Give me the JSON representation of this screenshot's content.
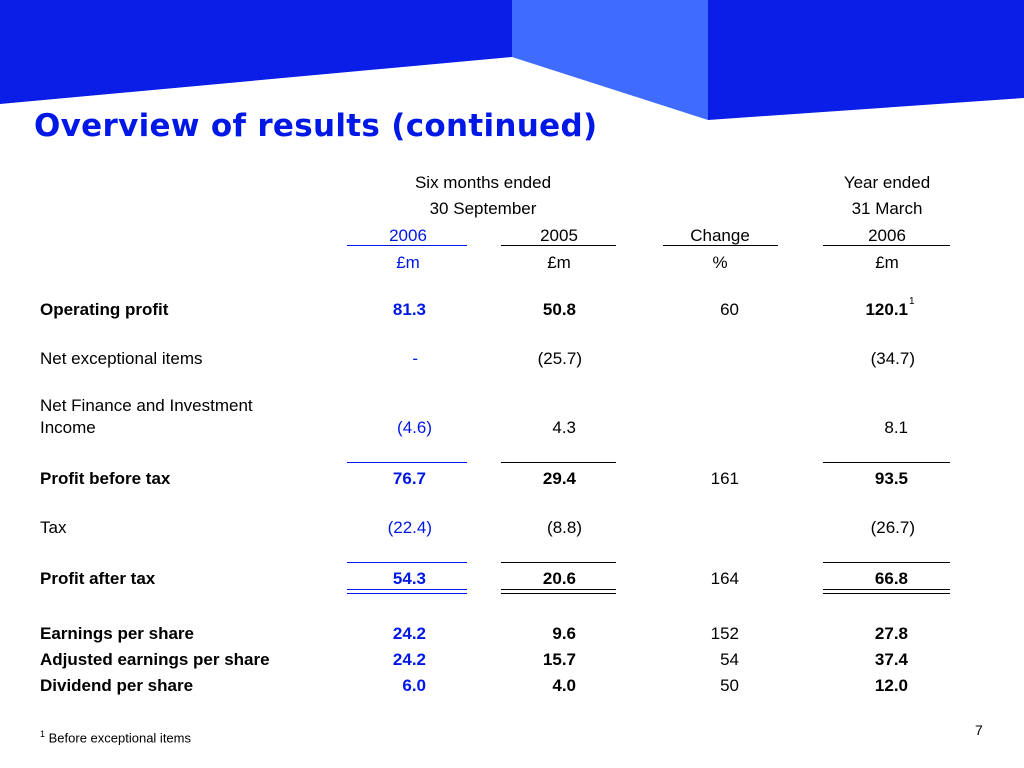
{
  "title": "Overview of results (continued)",
  "header": {
    "group1_line1": "Six months ended",
    "group1_line2": "30 September",
    "group2_line1": "Year ended",
    "group2_line2": "31 March",
    "col_2006": "2006",
    "col_2005": "2005",
    "col_change": "Change",
    "col_year": "2006",
    "unit_2006": "£m",
    "unit_2005": "£m",
    "unit_change": "%",
    "unit_year": "£m"
  },
  "rows": {
    "operating_profit": {
      "label": "Operating profit",
      "v2006": "81.3",
      "v2005": "50.8",
      "change": "60",
      "year": "120.1",
      "year_note": "1"
    },
    "net_exceptional": {
      "label": "Net exceptional items",
      "v2006": "-",
      "v2005": "(25.7)",
      "change": "",
      "year": "(34.7)"
    },
    "net_finance": {
      "label_line1": "Net Finance and Investment",
      "label_line2": "Income",
      "v2006": "(4.6)",
      "v2005": "4.3",
      "change": "",
      "year": "8.1"
    },
    "profit_before_tax": {
      "label": "Profit before tax",
      "v2006": "76.7",
      "v2005": "29.4",
      "change": "161",
      "year": "93.5"
    },
    "tax": {
      "label": "Tax",
      "v2006": "(22.4)",
      "v2005": "(8.8)",
      "change": "",
      "year": "(26.7)"
    },
    "profit_after_tax": {
      "label": "Profit after tax",
      "v2006": "54.3",
      "v2005": "20.6",
      "change": "164",
      "year": "66.8"
    },
    "eps": {
      "label": "Earnings per share",
      "v2006": "24.2",
      "v2005": "9.6",
      "change": "152",
      "year": "27.8"
    },
    "adjusted_eps": {
      "label": "Adjusted earnings per share",
      "v2006": "24.2",
      "v2005": "15.7",
      "change": "54",
      "year": "37.4"
    },
    "dps": {
      "label": "Dividend per share",
      "v2006": "6.0",
      "v2005": "4.0",
      "change": "50",
      "year": "12.0"
    }
  },
  "footnote": {
    "marker": "1",
    "text": "Before exceptional items"
  },
  "page_number": "7",
  "colors": {
    "accent_blue": "#0018e6",
    "banner_blue": "#0a1ee8",
    "banner_light": "#3f6bff"
  }
}
